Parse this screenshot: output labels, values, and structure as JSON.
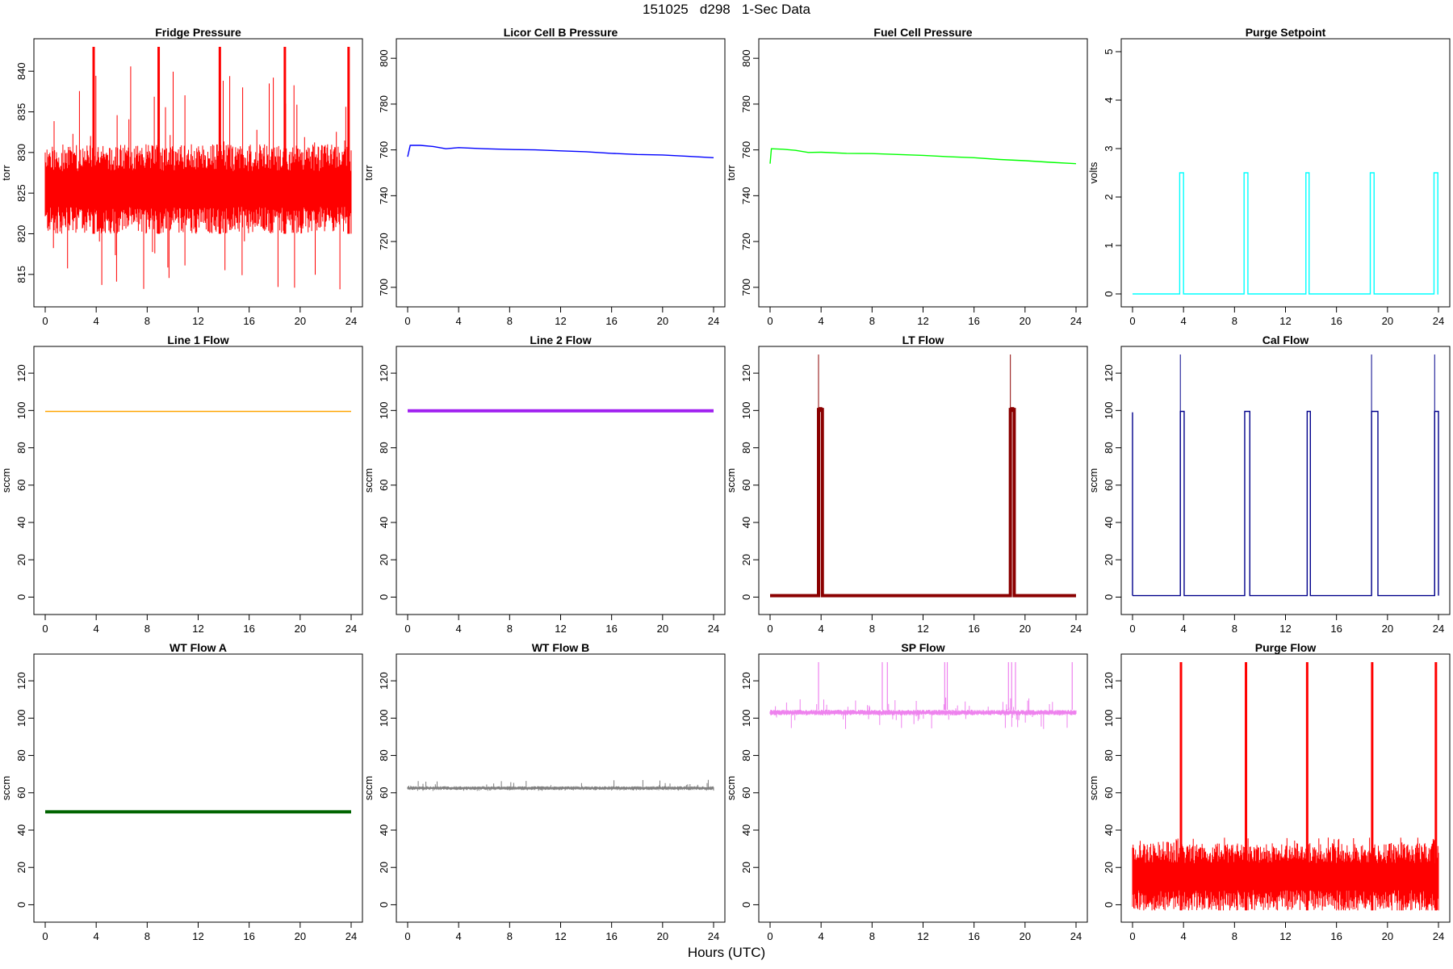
{
  "page": {
    "title": "151025   d298   1-Sec Data",
    "x_caption": "Hours (UTC)"
  },
  "chart_data": [
    {
      "type": "line",
      "title": "Fridge Pressure",
      "ylabel": "torr",
      "xlim": [
        0,
        24
      ],
      "ylim": [
        812,
        843
      ],
      "yticks": [
        815,
        820,
        825,
        830,
        835,
        840
      ],
      "xticks": [
        0,
        4,
        8,
        12,
        16,
        20,
        24
      ],
      "color": "#ff0000",
      "style": "noisy",
      "x": [
        0,
        24
      ],
      "series": [
        {
          "values": [
            825.5,
            825.5
          ]
        }
      ],
      "noise": {
        "band": [
          820,
          831
        ],
        "spike_max": 841,
        "spike_min": 813
      },
      "events": [
        3.8,
        8.9,
        13.7,
        18.8,
        23.8
      ]
    },
    {
      "type": "line",
      "title": "Licor Cell B Pressure",
      "ylabel": "torr",
      "xlim": [
        0,
        24
      ],
      "ylim": [
        695,
        805
      ],
      "yticks": [
        700,
        720,
        740,
        760,
        780,
        800
      ],
      "xticks": [
        0,
        4,
        8,
        12,
        16,
        20,
        24
      ],
      "color": "#0000ff",
      "style": "line",
      "x": [
        0,
        0.2,
        1,
        2,
        3,
        4,
        6,
        8,
        10,
        12,
        14,
        16,
        18,
        20,
        22,
        24
      ],
      "series": [
        {
          "values": [
            757,
            762,
            762,
            761.5,
            760.5,
            761,
            760.5,
            760.2,
            760,
            759.6,
            759.2,
            758.5,
            758,
            757.8,
            757.2,
            756.6
          ]
        }
      ]
    },
    {
      "type": "line",
      "title": "Fuel Cell Pressure",
      "ylabel": "torr",
      "xlim": [
        0,
        24
      ],
      "ylim": [
        695,
        805
      ],
      "yticks": [
        700,
        720,
        740,
        760,
        780,
        800
      ],
      "xticks": [
        0,
        4,
        8,
        12,
        16,
        20,
        24
      ],
      "color": "#00ff00",
      "style": "line",
      "x": [
        0,
        0.1,
        1,
        2,
        3,
        4,
        6,
        8,
        10,
        12,
        14,
        16,
        18,
        20,
        22,
        24
      ],
      "series": [
        {
          "values": [
            754,
            760.5,
            760.3,
            759.8,
            758.9,
            759,
            758.5,
            758.4,
            758,
            757.6,
            757,
            756.6,
            755.8,
            755.3,
            754.6,
            754
          ]
        }
      ]
    },
    {
      "type": "line",
      "title": "Purge Setpoint",
      "ylabel": "volts",
      "xlim": [
        0,
        24
      ],
      "ylim": [
        -0.1,
        5.1
      ],
      "yticks": [
        0,
        1,
        2,
        3,
        4,
        5
      ],
      "xticks": [
        0,
        4,
        8,
        12,
        16,
        20,
        24
      ],
      "color": "#00ffff",
      "style": "pulses",
      "x": [
        0,
        24
      ],
      "series": [
        {
          "values": [
            0,
            0
          ]
        }
      ],
      "pulses": [
        {
          "start": 3.7,
          "end": 4.0,
          "level": 2.5
        },
        {
          "start": 8.75,
          "end": 9.05,
          "level": 2.5
        },
        {
          "start": 13.6,
          "end": 13.85,
          "level": 2.5
        },
        {
          "start": 18.65,
          "end": 18.95,
          "level": 2.5
        },
        {
          "start": 23.65,
          "end": 23.95,
          "level": 2.5
        }
      ]
    },
    {
      "type": "line",
      "title": "Line 1 Flow",
      "ylabel": "sccm",
      "xlim": [
        0,
        24
      ],
      "ylim": [
        -5,
        130
      ],
      "yticks": [
        0,
        20,
        40,
        60,
        80,
        100,
        120
      ],
      "xticks": [
        0,
        4,
        8,
        12,
        16,
        20,
        24
      ],
      "color": "#ffa500",
      "style": "line",
      "x": [
        0,
        24
      ],
      "series": [
        {
          "values": [
            99.5,
            99.5
          ]
        }
      ]
    },
    {
      "type": "line",
      "title": "Line 2 Flow",
      "ylabel": "sccm",
      "xlim": [
        0,
        24
      ],
      "ylim": [
        -5,
        130
      ],
      "yticks": [
        0,
        20,
        40,
        60,
        80,
        100,
        120
      ],
      "xticks": [
        0,
        4,
        8,
        12,
        16,
        20,
        24
      ],
      "color": "#a020f0",
      "style": "thick",
      "x": [
        0,
        24
      ],
      "series": [
        {
          "values": [
            99.8,
            99.8
          ]
        }
      ]
    },
    {
      "type": "line",
      "title": "LT Flow",
      "ylabel": "sccm",
      "xlim": [
        0,
        24
      ],
      "ylim": [
        -5,
        130
      ],
      "yticks": [
        0,
        20,
        40,
        60,
        80,
        100,
        120
      ],
      "xticks": [
        0,
        4,
        8,
        12,
        16,
        20,
        24
      ],
      "color": "#8b0000",
      "style": "thick",
      "x": [
        0,
        24
      ],
      "series": [
        {
          "values": [
            0.8,
            0.8
          ]
        }
      ],
      "pulses": [
        {
          "start": 3.8,
          "end": 4.1,
          "level": 100.5
        },
        {
          "start": 18.85,
          "end": 19.15,
          "level": 100.5
        }
      ],
      "spikes": [
        3.8,
        18.85
      ]
    },
    {
      "type": "line",
      "title": "Cal Flow",
      "ylabel": "sccm",
      "xlim": [
        0,
        24
      ],
      "ylim": [
        -5,
        130
      ],
      "yticks": [
        0,
        20,
        40,
        60,
        80,
        100,
        120
      ],
      "xticks": [
        0,
        4,
        8,
        12,
        16,
        20,
        24
      ],
      "color": "#00008b",
      "style": "pulses",
      "x": [
        0,
        24
      ],
      "series": [
        {
          "values": [
            0.8,
            0.8
          ]
        }
      ],
      "pulses": [
        {
          "start": 3.75,
          "end": 4.05,
          "level": 99.5
        },
        {
          "start": 8.8,
          "end": 9.2,
          "level": 99.5
        },
        {
          "start": 13.7,
          "end": 13.95,
          "level": 99.5
        },
        {
          "start": 18.75,
          "end": 19.25,
          "level": 99.5
        },
        {
          "start": 23.7,
          "end": 24,
          "level": 99.5
        }
      ],
      "spikes": [
        3.75,
        18.75,
        23.7
      ],
      "start_spike": 99
    },
    {
      "type": "line",
      "title": "WT Flow A",
      "ylabel": "sccm",
      "xlim": [
        0,
        24
      ],
      "ylim": [
        -5,
        130
      ],
      "yticks": [
        0,
        20,
        40,
        60,
        80,
        100,
        120
      ],
      "xticks": [
        0,
        4,
        8,
        12,
        16,
        20,
        24
      ],
      "color": "#006400",
      "style": "thick",
      "x": [
        0,
        24
      ],
      "series": [
        {
          "values": [
            49.8,
            49.8
          ]
        }
      ]
    },
    {
      "type": "line",
      "title": "WT Flow B",
      "ylabel": "sccm",
      "xlim": [
        0,
        24
      ],
      "ylim": [
        -5,
        130
      ],
      "yticks": [
        0,
        20,
        40,
        60,
        80,
        100,
        120
      ],
      "xticks": [
        0,
        4,
        8,
        12,
        16,
        20,
        24
      ],
      "color": "#808080",
      "style": "noisy",
      "x": [
        0,
        24
      ],
      "series": [
        {
          "values": [
            62.5,
            62.5
          ]
        }
      ],
      "noise": {
        "band": [
          61.5,
          63.5
        ],
        "spike_max": 67,
        "spike_min": 61
      }
    },
    {
      "type": "line",
      "title": "SP Flow",
      "ylabel": "sccm",
      "xlim": [
        0,
        24
      ],
      "ylim": [
        -5,
        130
      ],
      "yticks": [
        0,
        20,
        40,
        60,
        80,
        100,
        120
      ],
      "xticks": [
        0,
        4,
        8,
        12,
        16,
        20,
        24
      ],
      "color": "#ee82ee",
      "style": "noisy",
      "x": [
        0,
        24
      ],
      "series": [
        {
          "values": [
            103,
            103
          ]
        }
      ],
      "noise": {
        "band": [
          101.5,
          104.5
        ],
        "spike_max": 111,
        "spike_min": 94
      },
      "spikes": [
        3.8,
        8.8,
        9.2,
        13.7,
        13.9,
        18.7,
        18.95,
        19.25,
        23.7
      ]
    },
    {
      "type": "line",
      "title": "Purge Flow",
      "ylabel": "sccm",
      "xlim": [
        0,
        24
      ],
      "ylim": [
        -5,
        130
      ],
      "yticks": [
        0,
        20,
        40,
        60,
        80,
        100,
        120
      ],
      "xticks": [
        0,
        4,
        8,
        12,
        16,
        20,
        24
      ],
      "color": "#ff0000",
      "style": "noisy",
      "x": [
        0,
        24
      ],
      "series": [
        {
          "values": [
            15,
            15
          ]
        }
      ],
      "noise": {
        "band": [
          -3,
          33
        ],
        "spike_max": 36,
        "spike_min": -3
      },
      "events": [
        3.8,
        8.9,
        13.7,
        18.8,
        23.8
      ]
    }
  ]
}
